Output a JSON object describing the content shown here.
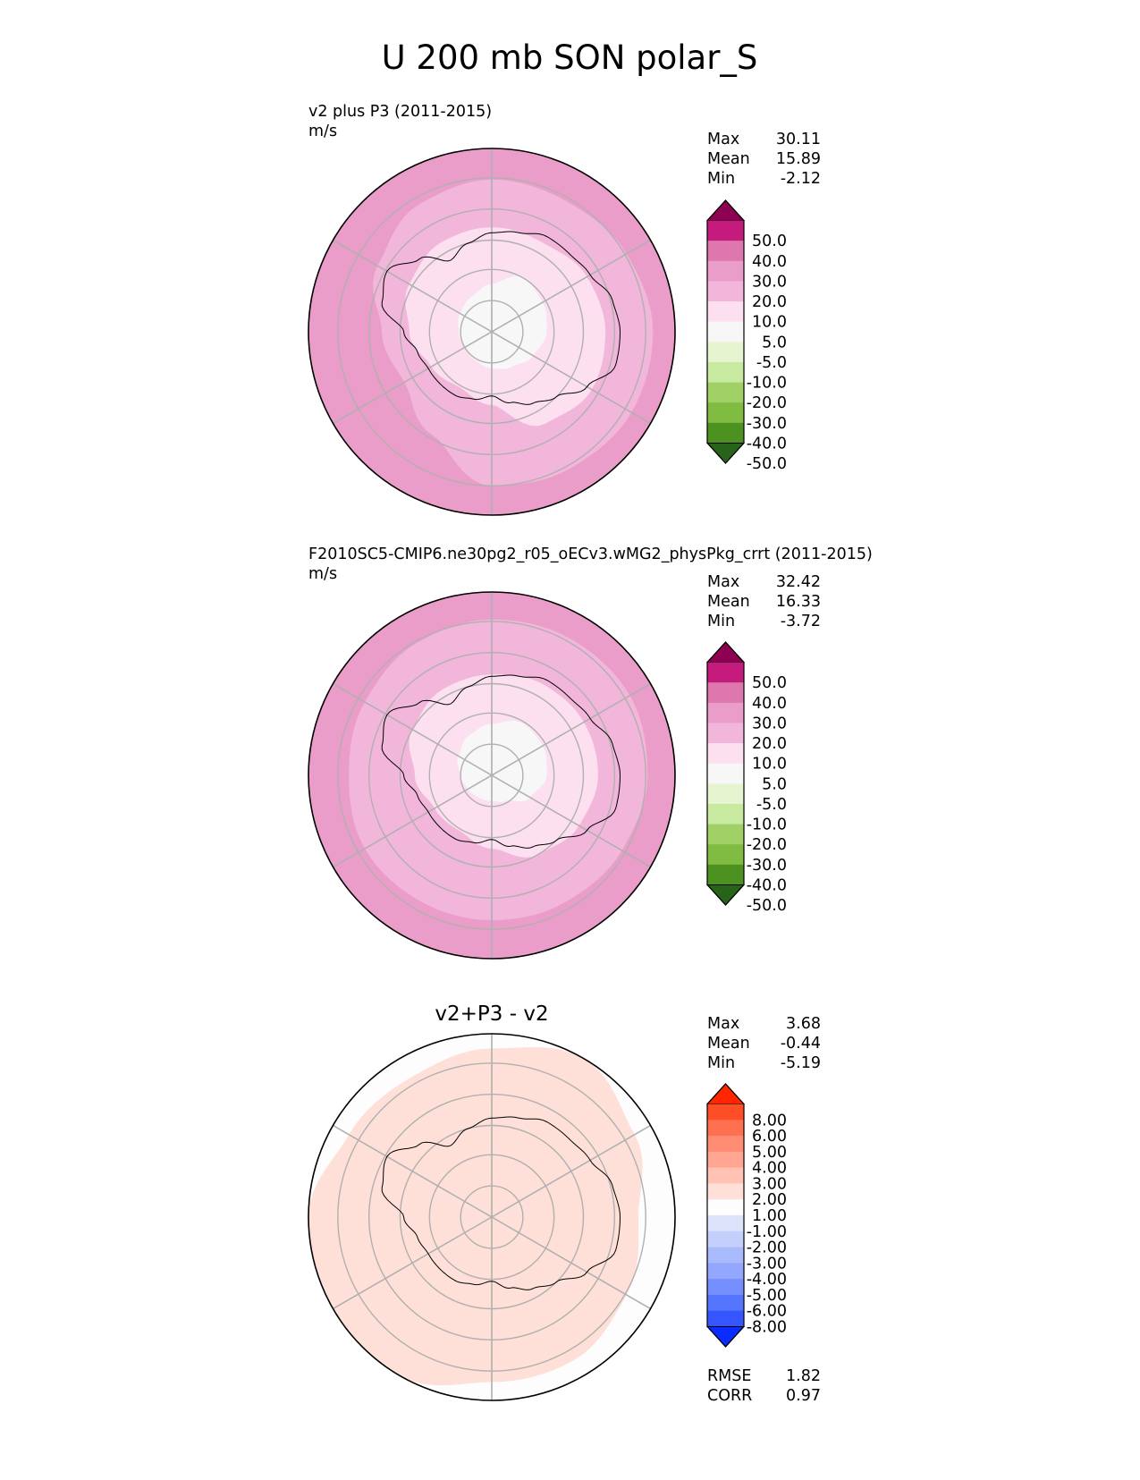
{
  "chart_data": {
    "title": "U 200 mb SON polar_S",
    "panels": [
      {
        "type": "polar_contour_map",
        "title": "",
        "label": "v2 plus P3 (2011-2015)",
        "units": "m/s",
        "stats": [
          {
            "name": "Max",
            "value": "30.11"
          },
          {
            "name": "Mean",
            "value": "15.89"
          },
          {
            "name": "Min",
            "value": "-2.12"
          }
        ],
        "colorbar": {
          "colors": [
            "#8e0152",
            "#c51b7d",
            "#de77ae",
            "#e99dc8",
            "#f1b6da",
            "#fde0ef",
            "#f7f7f7",
            "#e6f5d0",
            "#c7e9a0",
            "#a0d066",
            "#7fbc41",
            "#4d9221",
            "#276419"
          ],
          "ticks": [
            "50.0",
            "40.0",
            "30.0",
            "20.0",
            "10.0",
            "5.0",
            "-5.0",
            "-10.0",
            "-20.0",
            "-30.0",
            "-40.0",
            "-50.0"
          ]
        },
        "fields": [
          {
            "color": "#e99dc8",
            "rings": [
              [
                1.0,
                1.0,
                1.0,
                1.0,
                1.0,
                1.0,
                1.0,
                1.0,
                1.0,
                1.0,
                1.0,
                1.0
              ]
            ]
          },
          {
            "color": "#f1b6da",
            "rings": [
              [
                0.83,
                0.82,
                0.85,
                0.88,
                0.88,
                0.86,
                0.84,
                0.65,
                0.55,
                0.6,
                0.72,
                0.8
              ]
            ]
          },
          {
            "color": "#fde0ef",
            "rings": [
              [
                0.57,
                0.56,
                0.6,
                0.62,
                0.63,
                0.58,
                0.4,
                0.35,
                0.38,
                0.45,
                0.52,
                0.56
              ]
            ]
          },
          {
            "color": "#f7f7f7",
            "rings": [
              [
                0.26,
                0.34,
                0.32,
                0.3,
                0.26,
                0.22,
                0.2,
                0.18,
                0.17,
                0.18,
                0.2,
                0.22
              ]
            ]
          }
        ],
        "rmse": null,
        "corr": null
      },
      {
        "type": "polar_contour_map",
        "title": "",
        "label": "F2010SC5-CMIP6.ne30pg2_r05_oECv3.wMG2_physPkg_crrt (2011-2015)",
        "units": "m/s",
        "stats": [
          {
            "name": "Max",
            "value": "32.42"
          },
          {
            "name": "Mean",
            "value": "16.33"
          },
          {
            "name": "Min",
            "value": "-3.72"
          }
        ],
        "colorbar": {
          "colors": [
            "#8e0152",
            "#c51b7d",
            "#de77ae",
            "#e99dc8",
            "#f1b6da",
            "#fde0ef",
            "#f7f7f7",
            "#e6f5d0",
            "#c7e9a0",
            "#a0d066",
            "#7fbc41",
            "#4d9221",
            "#276419"
          ],
          "ticks": [
            "50.0",
            "40.0",
            "30.0",
            "20.0",
            "10.0",
            "5.0",
            "-5.0",
            "-10.0",
            "-20.0",
            "-30.0",
            "-40.0",
            "-50.0"
          ]
        },
        "fields": [
          {
            "color": "#e99dc8",
            "rings": [
              [
                1.0,
                1.0,
                1.0,
                1.0,
                1.0,
                1.0,
                1.0,
                1.0,
                1.0,
                1.0,
                1.0,
                1.0
              ]
            ]
          },
          {
            "color": "#f1b6da",
            "rings": [
              [
                0.85,
                0.86,
                0.87,
                0.85,
                0.82,
                0.8,
                0.79,
                0.79,
                0.8,
                0.78,
                0.8,
                0.83
              ]
            ]
          },
          {
            "color": "#fde0ef",
            "rings": [
              [
                0.55,
                0.57,
                0.58,
                0.58,
                0.55,
                0.5,
                0.4,
                0.35,
                0.36,
                0.42,
                0.5,
                0.54
              ]
            ]
          },
          {
            "color": "#f7f7f7",
            "rings": [
              [
                0.28,
                0.33,
                0.32,
                0.3,
                0.24,
                0.16,
                0.14,
                0.14,
                0.15,
                0.17,
                0.21,
                0.25
              ]
            ]
          }
        ],
        "rmse": null,
        "corr": null
      },
      {
        "type": "polar_contour_map",
        "title": "v2+P3 - v2",
        "label": "",
        "units": "",
        "stats": [
          {
            "name": "Max",
            "value": "3.68"
          },
          {
            "name": "Mean",
            "value": "-0.44"
          },
          {
            "name": "Min",
            "value": "-5.19"
          }
        ],
        "colorbar": {
          "colors": [
            "#ff2600",
            "#ff4d26",
            "#ff7050",
            "#ff8c73",
            "#ffa591",
            "#ffc2b3",
            "#ffe0d8",
            "#fdfdfd",
            "#dde3fb",
            "#c4cffc",
            "#aabbfd",
            "#92a7fd",
            "#7590fe",
            "#5575ff",
            "#3555ff",
            "#0a2cff"
          ],
          "ticks": [
            "8.00",
            "6.00",
            "5.00",
            "4.00",
            "3.00",
            "2.00",
            "1.00",
            "-1.00",
            "-2.00",
            "-3.00",
            "-4.00",
            "-5.00",
            "-6.00",
            "-8.00"
          ]
        },
        "fields": [
          {
            "color": "#ffe0d8",
            "rings": [
              [
                0.92,
                1.0,
                0.9,
                0.8,
                0.85,
                0.9,
                0.9,
                1.0,
                1.0,
                1.0,
                0.9,
                0.88
              ]
            ]
          },
          {
            "color": "#dde3fb",
            "rings": [
              [
                0.0,
                0.0,
                0.0,
                0.0,
                0.0,
                0.0,
                0.0,
                0.0,
                0.0,
                0.0,
                0.0,
                0.0
              ]
            ]
          }
        ],
        "rmse": "1.82",
        "corr": "0.97"
      }
    ]
  }
}
